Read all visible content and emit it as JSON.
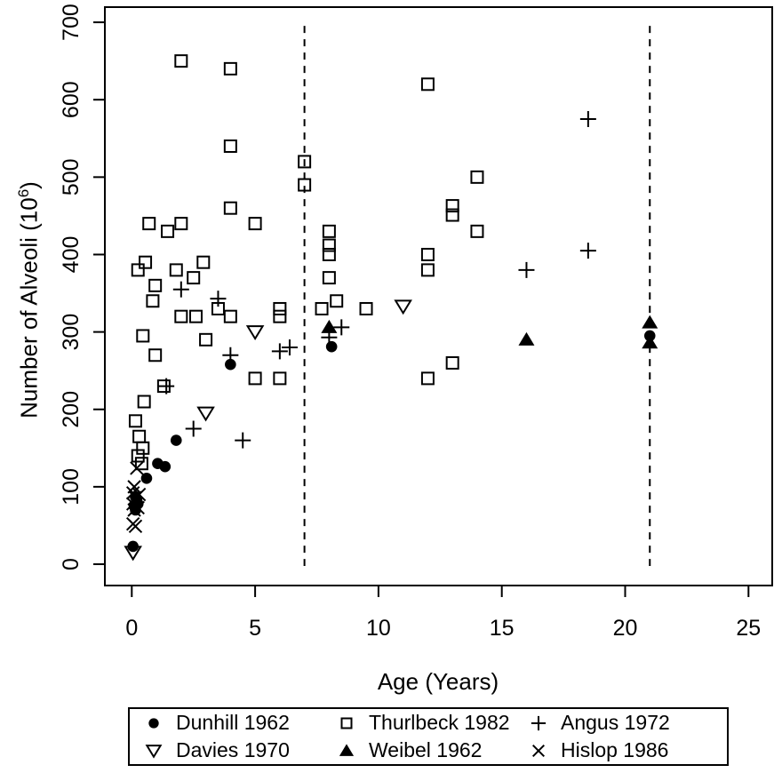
{
  "figure": {
    "background_color": "#ffffff",
    "foreground_color": "#000000"
  },
  "chart_data": {
    "type": "scatter",
    "title": "",
    "xlabel": "Age (Years)",
    "ylabel_prefix": "Number of Alveoli (10",
    "ylabel_exponent": "6",
    "ylabel_suffix": ")",
    "xlim": [
      0,
      25
    ],
    "ylim": [
      0,
      700
    ],
    "xticks": [
      0,
      5,
      10,
      15,
      20,
      25
    ],
    "yticks": [
      0,
      100,
      200,
      300,
      400,
      500,
      600,
      700
    ],
    "grid": false,
    "reference_lines": {
      "axis": "x",
      "style": "dashed",
      "values": [
        7,
        21
      ]
    },
    "legend_position": "bottom",
    "series": [
      {
        "key": "dunhill",
        "label": "Dunhill 1962",
        "marker": "filled-circle",
        "points": [
          [
            0.05,
            23
          ],
          [
            0.15,
            70
          ],
          [
            0.1,
            75
          ],
          [
            0.25,
            78
          ],
          [
            0.2,
            83
          ],
          [
            0.15,
            87
          ],
          [
            0.6,
            111
          ],
          [
            1.05,
            130
          ],
          [
            1.35,
            126
          ],
          [
            1.8,
            160
          ],
          [
            4,
            258
          ],
          [
            8.1,
            281
          ],
          [
            21,
            295
          ]
        ]
      },
      {
        "key": "weibel",
        "label": "Weibel 1962",
        "marker": "filled-triangle-up",
        "points": [
          [
            8,
            306
          ],
          [
            16,
            290
          ],
          [
            21,
            312
          ],
          [
            21,
            286
          ]
        ]
      },
      {
        "key": "davies",
        "label": "Davies 1970",
        "marker": "open-triangle-down",
        "points": [
          [
            0.05,
            15
          ],
          [
            3,
            195
          ],
          [
            5,
            300
          ],
          [
            11,
            333
          ]
        ]
      },
      {
        "key": "angus",
        "label": "Angus 1972",
        "marker": "plus",
        "points": [
          [
            1.4,
            230
          ],
          [
            2,
            355
          ],
          [
            2.5,
            175
          ],
          [
            3.5,
            343
          ],
          [
            4,
            270
          ],
          [
            4.5,
            160
          ],
          [
            6,
            275
          ],
          [
            6.4,
            280
          ],
          [
            8,
            293
          ],
          [
            8.5,
            306
          ],
          [
            16,
            380
          ],
          [
            18.5,
            405
          ],
          [
            18.5,
            575
          ]
        ]
      },
      {
        "key": "thurlbeck",
        "label": "Thurlbeck 1982",
        "marker": "open-square",
        "points": [
          [
            0.15,
            185
          ],
          [
            0.25,
            140
          ],
          [
            0.3,
            165
          ],
          [
            0.25,
            380
          ],
          [
            0.4,
            130
          ],
          [
            0.45,
            150
          ],
          [
            0.5,
            210
          ],
          [
            0.55,
            390
          ],
          [
            0.45,
            295
          ],
          [
            0.7,
            440
          ],
          [
            0.85,
            340
          ],
          [
            0.95,
            360
          ],
          [
            0.95,
            270
          ],
          [
            1.3,
            230
          ],
          [
            1.45,
            430
          ],
          [
            1.8,
            380
          ],
          [
            2,
            440
          ],
          [
            2,
            650
          ],
          [
            2,
            320
          ],
          [
            2.6,
            320
          ],
          [
            2.9,
            390
          ],
          [
            2.5,
            370
          ],
          [
            3,
            290
          ],
          [
            3.5,
            330
          ],
          [
            4,
            640
          ],
          [
            4,
            540
          ],
          [
            4,
            460
          ],
          [
            4,
            320
          ],
          [
            5,
            440
          ],
          [
            5,
            240
          ],
          [
            6,
            330
          ],
          [
            6,
            320
          ],
          [
            6,
            240
          ],
          [
            7,
            520
          ],
          [
            7,
            490
          ],
          [
            7.7,
            330
          ],
          [
            8,
            430
          ],
          [
            8,
            412
          ],
          [
            8,
            400
          ],
          [
            8,
            370
          ],
          [
            8.3,
            340
          ],
          [
            9.5,
            330
          ],
          [
            12,
            620
          ],
          [
            12,
            400
          ],
          [
            12,
            380
          ],
          [
            12,
            240
          ],
          [
            13,
            463
          ],
          [
            13,
            451
          ],
          [
            13,
            260
          ],
          [
            14,
            500
          ],
          [
            14,
            430
          ]
        ]
      },
      {
        "key": "hislop",
        "label": "Hislop 1986",
        "marker": "x-cross",
        "points": [
          [
            0.2,
            124
          ],
          [
            0.1,
            100
          ],
          [
            0.05,
            92
          ],
          [
            0.3,
            90
          ],
          [
            0.15,
            86
          ],
          [
            0.05,
            78
          ],
          [
            0.25,
            73
          ],
          [
            0.1,
            70
          ],
          [
            0.05,
            52
          ],
          [
            0.15,
            49
          ]
        ]
      }
    ],
    "legend_entries": [
      {
        "series_key": "dunhill",
        "label": "Dunhill 1962",
        "marker": "filled-circle"
      },
      {
        "series_key": "davies",
        "label": "Davies 1970",
        "marker": "open-triangle-down"
      },
      {
        "series_key": "thurlbeck",
        "label": "Thurlbeck 1982",
        "marker": "open-square"
      },
      {
        "series_key": "weibel",
        "label": "Weibel 1962",
        "marker": "filled-triangle-up"
      },
      {
        "series_key": "angus",
        "label": "Angus 1972",
        "marker": "plus"
      },
      {
        "series_key": "hislop",
        "label": "Hislop 1986",
        "marker": "x-cross"
      }
    ]
  }
}
